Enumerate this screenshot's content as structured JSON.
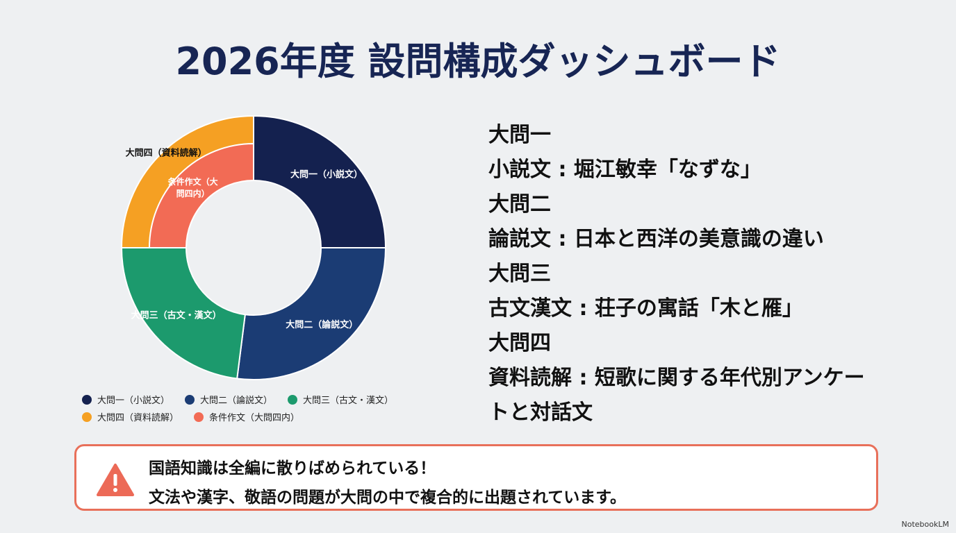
{
  "header": {
    "title": "2026年度 設問構成ダッシュボード"
  },
  "chart_data": {
    "type": "pie",
    "categories": [
      "大問一（小説文）",
      "大問二（論説文）",
      "大問三（古文・漢文）",
      "大問四（資料読解）"
    ],
    "values": [
      25,
      27,
      23,
      25
    ],
    "colors": [
      "#14214f",
      "#1b3c74",
      "#1c9a6d",
      "#f5a023"
    ],
    "nested": {
      "name": "条件作文（大問四内）",
      "color": "#f26b55",
      "in": "大問四（資料読解）"
    }
  },
  "sections": [
    {
      "heading": "大問一",
      "text": "小説文 : 堀江敏幸「なずな」"
    },
    {
      "heading": "大問二",
      "text": "論説文 : 日本と西洋の美意識の違い"
    },
    {
      "heading": "大問三",
      "text": "古文漢文 : 荘子の寓話「木と雁」"
    },
    {
      "heading": "大問四",
      "text": "資料読解 : 短歌に関する年代別アンケートと対話文"
    }
  ],
  "alert": {
    "line1": "国語知識は全編に散りばめられている！",
    "line2": "文法や漢字、敬語の問題が大問の中で複合的に出題されています。"
  },
  "watermark": "NotebookLM"
}
